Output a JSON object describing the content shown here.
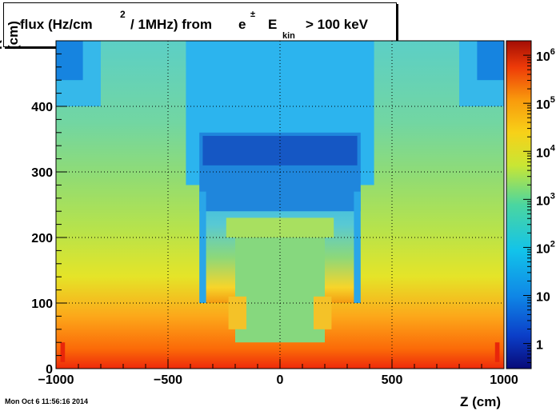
{
  "chart_data": {
    "type": "heatmap",
    "title_parts": {
      "lead": "flux (Hz/cm",
      "sup": "2",
      "mid": "/ 1MHz) from",
      "particle": "e",
      "particle_sup": "±",
      "energy": "E",
      "energy_sub": "kin",
      "tail": "> 100 keV"
    },
    "xlabel": "Z (cm)",
    "ylabel": "R (cm)",
    "xlim": [
      -1000,
      1000
    ],
    "ylim": [
      0,
      500
    ],
    "x_ticks": [
      {
        "value": -1000,
        "label": "−1000"
      },
      {
        "value": -500,
        "label": "−500"
      },
      {
        "value": 0,
        "label": "0"
      },
      {
        "value": 500,
        "label": "500"
      },
      {
        "value": 1000,
        "label": "1000"
      }
    ],
    "y_ticks": [
      {
        "value": 0,
        "label": "0"
      },
      {
        "value": 100,
        "label": "100"
      },
      {
        "value": 200,
        "label": "200"
      },
      {
        "value": 300,
        "label": "300"
      },
      {
        "value": 400,
        "label": "400"
      }
    ],
    "grid": true,
    "colorbar": {
      "scale": "log",
      "range": [
        0.3,
        2000000
      ],
      "ticks": [
        {
          "value": 1,
          "label": "1"
        },
        {
          "value": 10,
          "label": "10"
        },
        {
          "value": 100,
          "base": "10",
          "exp": "2"
        },
        {
          "value": 1000,
          "base": "10",
          "exp": "3"
        },
        {
          "value": 10000,
          "base": "10",
          "exp": "4"
        },
        {
          "value": 100000,
          "base": "10",
          "exp": "5"
        },
        {
          "value": 1000000,
          "base": "10",
          "exp": "6"
        }
      ]
    }
  },
  "timestamp": "Mon Oct  6 11:56:16 2014"
}
